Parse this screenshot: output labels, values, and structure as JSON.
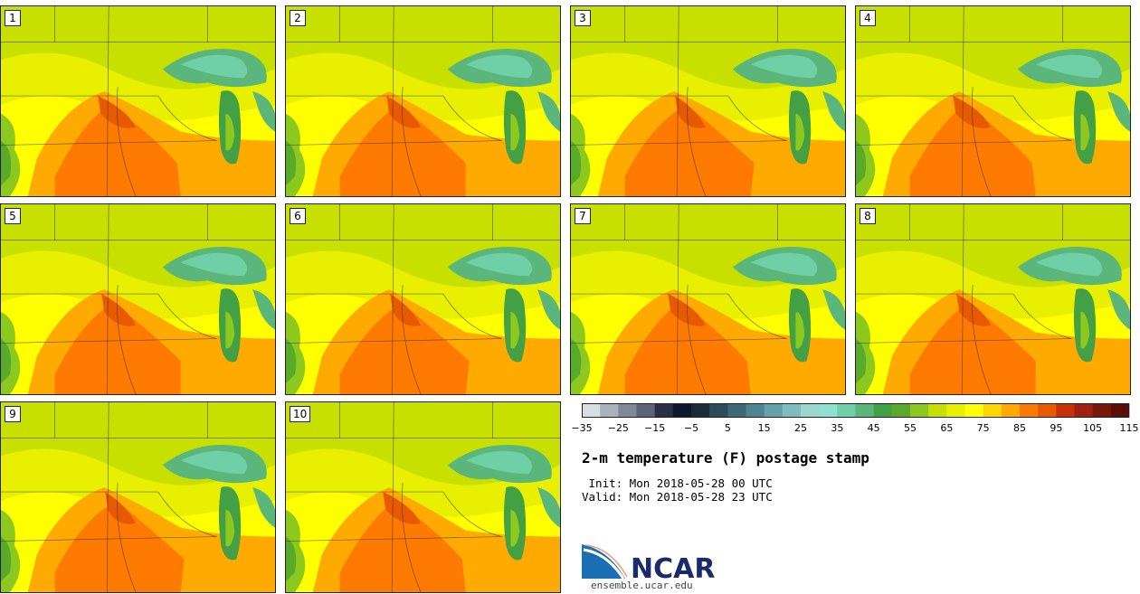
{
  "stamps": [
    {
      "label": "1"
    },
    {
      "label": "2"
    },
    {
      "label": "3"
    },
    {
      "label": "4"
    },
    {
      "label": "5"
    },
    {
      "label": "6"
    },
    {
      "label": "7"
    },
    {
      "label": "8"
    },
    {
      "label": "9"
    },
    {
      "label": "10"
    }
  ],
  "colorbar": {
    "colors": [
      "#d8dde2",
      "#aab2bc",
      "#7f8a98",
      "#5b6577",
      "#2a2f45",
      "#0f172e",
      "#1c2a3a",
      "#2b4c5a",
      "#3e6878",
      "#4f8492",
      "#66a0aa",
      "#80bcbe",
      "#9cd6cc",
      "#8ee0d0",
      "#6fcfa6",
      "#5ab67a",
      "#44a045",
      "#58aa28",
      "#8cc81e",
      "#c8e000",
      "#e8f000",
      "#ffff00",
      "#ffd700",
      "#ffaa00",
      "#ff7a00",
      "#e85a00",
      "#c83008",
      "#a02010",
      "#7a1808",
      "#5a1008"
    ],
    "tick_labels": [
      "-35",
      "-25",
      "-15",
      "-5",
      "5",
      "15",
      "25",
      "35",
      "45",
      "55",
      "65",
      "75",
      "85",
      "95",
      "105",
      "115"
    ]
  },
  "title": "2-m temperature (F) postage stamp",
  "init_line": " Init: Mon 2018-05-28 00 UTC",
  "valid_line": "Valid: Mon 2018-05-28 23 UTC",
  "logo_text": "NCAR",
  "logo_url": "ensemble.ucar.edu"
}
